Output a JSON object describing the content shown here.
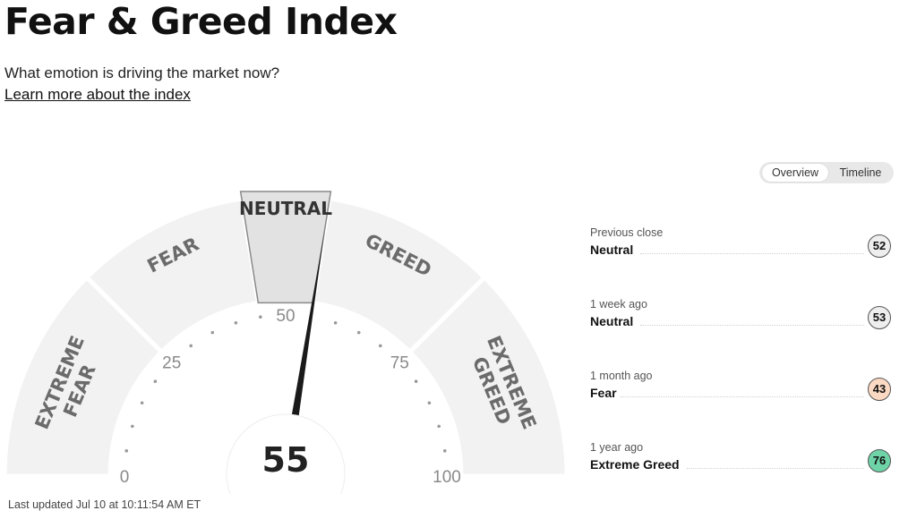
{
  "page": {
    "title": "Fear & Greed Index",
    "subtitle": "What emotion is driving the market now?",
    "learn_more": "Learn more about the index"
  },
  "view_toggle": {
    "options": [
      "Overview",
      "Timeline"
    ],
    "selected": "Overview"
  },
  "gauge": {
    "value": 55,
    "value_text": "55",
    "min": 0,
    "max": 100,
    "current_zone": "NEUTRAL",
    "zones": [
      {
        "lines": [
          "EXTREME",
          "FEAR"
        ],
        "from": 0,
        "to": 25
      },
      {
        "lines": [
          "FEAR"
        ],
        "from": 25,
        "to": 45
      },
      {
        "lines": [
          "NEUTRAL"
        ],
        "from": 45,
        "to": 55
      },
      {
        "lines": [
          "GREED"
        ],
        "from": 55,
        "to": 75
      },
      {
        "lines": [
          "EXTREME",
          "GREED"
        ],
        "from": 75,
        "to": 100
      }
    ],
    "tick_labels": [
      "0",
      "25",
      "50",
      "75",
      "100"
    ]
  },
  "history": [
    {
      "when": "Previous close",
      "label": "Neutral",
      "value": "52",
      "color": "#eeeeee"
    },
    {
      "when": "1 week ago",
      "label": "Neutral",
      "value": "53",
      "color": "#eeeeee"
    },
    {
      "when": "1 month ago",
      "label": "Fear",
      "value": "43",
      "color": "#fcd9c3"
    },
    {
      "when": "1 year ago",
      "label": "Extreme Greed",
      "value": "76",
      "color": "#6fd3a8"
    }
  ],
  "last_updated": "Last updated Jul 10 at 10:11:54 AM ET",
  "colors": {
    "zone_fill": "#f2f2f2",
    "active_zone_fill": "#e2e2e2",
    "zone_text": "#6b6b6b",
    "needle": "#1a1a1a"
  }
}
